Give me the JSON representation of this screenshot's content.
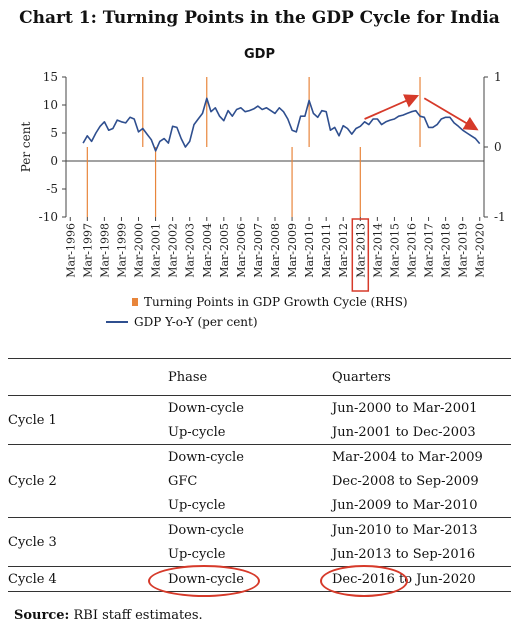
{
  "title": "Chart 1: Turning Points in the GDP Cycle for India",
  "chart_data": {
    "type": "line",
    "title": "GDP",
    "ylabel": "Per cent",
    "ylim": [
      -10,
      15
    ],
    "yticks": [
      "15",
      "10",
      "5",
      "0",
      "-5",
      "-10"
    ],
    "y2lim": [
      -1,
      1
    ],
    "y2ticks": [
      "1",
      "0",
      "-1"
    ],
    "xticks": [
      "Mar-1996",
      "Mar-1997",
      "Mar-1998",
      "Mar-1999",
      "Mar-2000",
      "Mar-2001",
      "Mar-2002",
      "Mar-2003",
      "Mar-2004",
      "Mar-2005",
      "Mar-2006",
      "Mar-2007",
      "Mar-2008",
      "Mar-2009",
      "Mar-2010",
      "Mar-2011",
      "Mar-2012",
      "Mar-2013",
      "Mar-2014",
      "Mar-2015",
      "Mar-2016",
      "Mar-2017",
      "Mar-2018",
      "Mar-2019",
      "Mar-2020"
    ],
    "highlighted_tick": "Mar-2013",
    "turning_points": [
      {
        "x": 1997.0,
        "value": -1
      },
      {
        "x": 2000.25,
        "value": 1
      },
      {
        "x": 2001.0,
        "value": -1
      },
      {
        "x": 2004.0,
        "value": 1
      },
      {
        "x": 2009.0,
        "value": -1
      },
      {
        "x": 2010.0,
        "value": 1
      },
      {
        "x": 2013.0,
        "value": -1
      },
      {
        "x": 2016.5,
        "value": 1
      }
    ],
    "series": [
      {
        "name": "GDP Y-o-Y (per cent)",
        "color": "#2f4f8f",
        "x": [
          1996.75,
          1997.0,
          1997.25,
          1997.5,
          1997.75,
          1998.0,
          1998.25,
          1998.5,
          1998.75,
          1999.0,
          1999.25,
          1999.5,
          1999.75,
          2000.0,
          2000.25,
          2000.5,
          2000.75,
          2001.0,
          2001.25,
          2001.5,
          2001.75,
          2002.0,
          2002.25,
          2002.5,
          2002.75,
          2003.0,
          2003.25,
          2003.5,
          2003.75,
          2004.0,
          2004.25,
          2004.5,
          2004.75,
          2005.0,
          2005.25,
          2005.5,
          2005.75,
          2006.0,
          2006.25,
          2006.5,
          2006.75,
          2007.0,
          2007.25,
          2007.5,
          2007.75,
          2008.0,
          2008.25,
          2008.5,
          2008.75,
          2009.0,
          2009.25,
          2009.5,
          2009.75,
          2010.0,
          2010.25,
          2010.5,
          2010.75,
          2011.0,
          2011.25,
          2011.5,
          2011.75,
          2012.0,
          2012.25,
          2012.5,
          2012.75,
          2013.0,
          2013.25,
          2013.5,
          2013.75,
          2014.0,
          2014.25,
          2014.5,
          2014.75,
          2015.0,
          2015.25,
          2015.5,
          2015.75,
          2016.0,
          2016.25,
          2016.5,
          2016.75,
          2017.0,
          2017.25,
          2017.5,
          2017.75,
          2018.0,
          2018.25,
          2018.5,
          2018.75,
          2019.0,
          2019.25,
          2019.5,
          2019.75,
          2020.0
        ],
        "values": [
          3.2,
          4.5,
          3.5,
          5.0,
          6.2,
          7.0,
          5.5,
          5.8,
          7.3,
          7.0,
          6.8,
          7.8,
          7.5,
          5.2,
          5.8,
          4.8,
          3.8,
          1.8,
          3.5,
          4.0,
          3.2,
          6.2,
          6.0,
          4.0,
          2.5,
          3.5,
          6.5,
          7.5,
          8.5,
          11.2,
          8.8,
          9.5,
          8.0,
          7.2,
          9.0,
          8.0,
          9.2,
          9.5,
          8.8,
          9.0,
          9.3,
          9.8,
          9.2,
          9.5,
          9.0,
          8.5,
          9.5,
          8.8,
          7.5,
          5.5,
          5.2,
          8.0,
          8.0,
          10.8,
          8.5,
          7.8,
          9.0,
          8.8,
          5.5,
          6.0,
          4.5,
          6.3,
          5.8,
          4.8,
          5.8,
          6.2,
          7.0,
          6.5,
          7.5,
          7.5,
          6.5,
          7.0,
          7.3,
          7.5,
          8.0,
          8.2,
          8.5,
          8.8,
          9.0,
          8.0,
          7.8,
          6.0,
          6.0,
          6.5,
          7.5,
          7.8,
          7.8,
          6.8,
          6.2,
          5.5,
          5.0,
          4.5,
          4.0,
          3.1
        ]
      }
    ],
    "legend": [
      {
        "label": "Turning Points in GDP Growth Cycle (RHS)",
        "color": "#e8853b"
      },
      {
        "label": "GDP Y-o-Y (per cent)",
        "color": "#2f4f8f"
      }
    ]
  },
  "table": {
    "header": {
      "phase": "Phase",
      "quarters": "Quarters"
    },
    "rows": [
      {
        "cycle": "Cycle 1",
        "phases": [
          {
            "phase": "Down-cycle",
            "quarters": "Jun-2000 to Mar-2001"
          },
          {
            "phase": "Up-cycle",
            "quarters": "Jun-2001 to Dec-2003"
          }
        ]
      },
      {
        "cycle": "Cycle 2",
        "phases": [
          {
            "phase": "Down-cycle",
            "quarters": "Mar-2004 to Mar-2009"
          },
          {
            "phase": "GFC",
            "quarters": "Dec-2008 to Sep-2009"
          },
          {
            "phase": "Up-cycle",
            "quarters": "Jun-2009 to Mar-2010"
          }
        ]
      },
      {
        "cycle": "Cycle 3",
        "phases": [
          {
            "phase": "Down-cycle",
            "quarters": "Jun-2010 to Mar-2013"
          },
          {
            "phase": "Up-cycle",
            "quarters": "Jun-2013 to Sep-2016"
          }
        ]
      },
      {
        "cycle": "Cycle 4",
        "phases": [
          {
            "phase": "Down-cycle",
            "quarters_start": "Dec-2016",
            "quarters_end": " to Jun-2020"
          }
        ]
      }
    ]
  },
  "source": {
    "label": "Source:",
    "text": " RBI staff estimates."
  },
  "annotation_color": "#d63a2a"
}
